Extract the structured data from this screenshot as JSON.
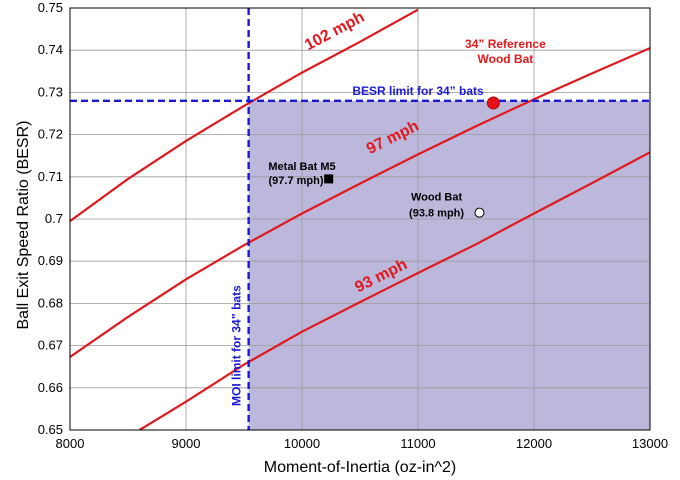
{
  "chart_data": {
    "type": "line",
    "title": "",
    "xlabel": "Moment-of-Inertia (oz-in^2)",
    "ylabel": "Ball Exit Speed Ratio (BESR)",
    "xlim": [
      8000,
      13000
    ],
    "ylim": [
      0.65,
      0.75
    ],
    "xticks": [
      8000,
      9000,
      10000,
      11000,
      12000,
      13000
    ],
    "yticks": [
      0.65,
      0.66,
      0.67,
      0.68,
      0.69,
      0.7,
      0.71,
      0.72,
      0.73,
      0.74,
      0.75
    ],
    "ytick_labels": [
      "0.65",
      "0.66",
      "0.67",
      "0.68",
      "0.69",
      "0.7",
      "0.71",
      "0.72",
      "0.73",
      "0.74",
      "0.75"
    ],
    "grid": true,
    "colors": {
      "curves": "#e0191e",
      "limits": "#1a1ad4",
      "region": "#bcb8dc"
    },
    "series": [
      {
        "name": "102 mph",
        "label_x": 10300,
        "label_y": 0.7435,
        "x": [
          8000,
          8500,
          9000,
          9500,
          10000,
          10500,
          11000
        ],
        "y": [
          0.6995,
          0.7095,
          0.7185,
          0.7268,
          0.7347,
          0.742,
          0.7496
        ]
      },
      {
        "name": "97 mph",
        "label_x": 10800,
        "label_y": 0.7183,
        "x": [
          8000,
          8500,
          9000,
          9500,
          10000,
          10500,
          11000,
          11500,
          12000,
          12500,
          13000
        ],
        "y": [
          0.6673,
          0.6768,
          0.6857,
          0.6938,
          0.7013,
          0.7084,
          0.7153,
          0.722,
          0.7284,
          0.7345,
          0.7405
        ]
      },
      {
        "name": "93 mph",
        "label_x": 10700,
        "label_y": 0.6855,
        "x": [
          8600,
          9000,
          9500,
          10000,
          10500,
          11000,
          11500,
          12000,
          12500,
          13000
        ],
        "y": [
          0.65,
          0.6567,
          0.6655,
          0.6733,
          0.6803,
          0.6872,
          0.694,
          0.7013,
          0.7085,
          0.7158
        ]
      }
    ],
    "moi_limit": {
      "x": 9540,
      "label": "MOI limit for 34” bats",
      "label_y": 0.67
    },
    "besr_limit": {
      "y": 0.728,
      "label": "BESR limit for 34” bats",
      "label_x": 11000,
      "label_y": 0.7294
    },
    "shaded_region": {
      "x_from": 9540,
      "x_to": 13000,
      "y_from": 0.65,
      "y_to": 0.728
    },
    "points": [
      {
        "name": "Metal Bat M5",
        "value_label": "(97.7 mph)",
        "x": 10230,
        "y": 0.7095,
        "marker": "filled-square",
        "label_x": 10000
      },
      {
        "name": "Wood Bat",
        "value_label": "(93.8 mph)",
        "x": 11530,
        "y": 0.7015,
        "marker": "open-circle",
        "label_x": 11160
      },
      {
        "name": "34” Reference",
        "value_label": "Wood Bat",
        "x": 11650,
        "y": 0.7275,
        "marker": "filled-circle-red",
        "label_x": 11650
      }
    ]
  }
}
